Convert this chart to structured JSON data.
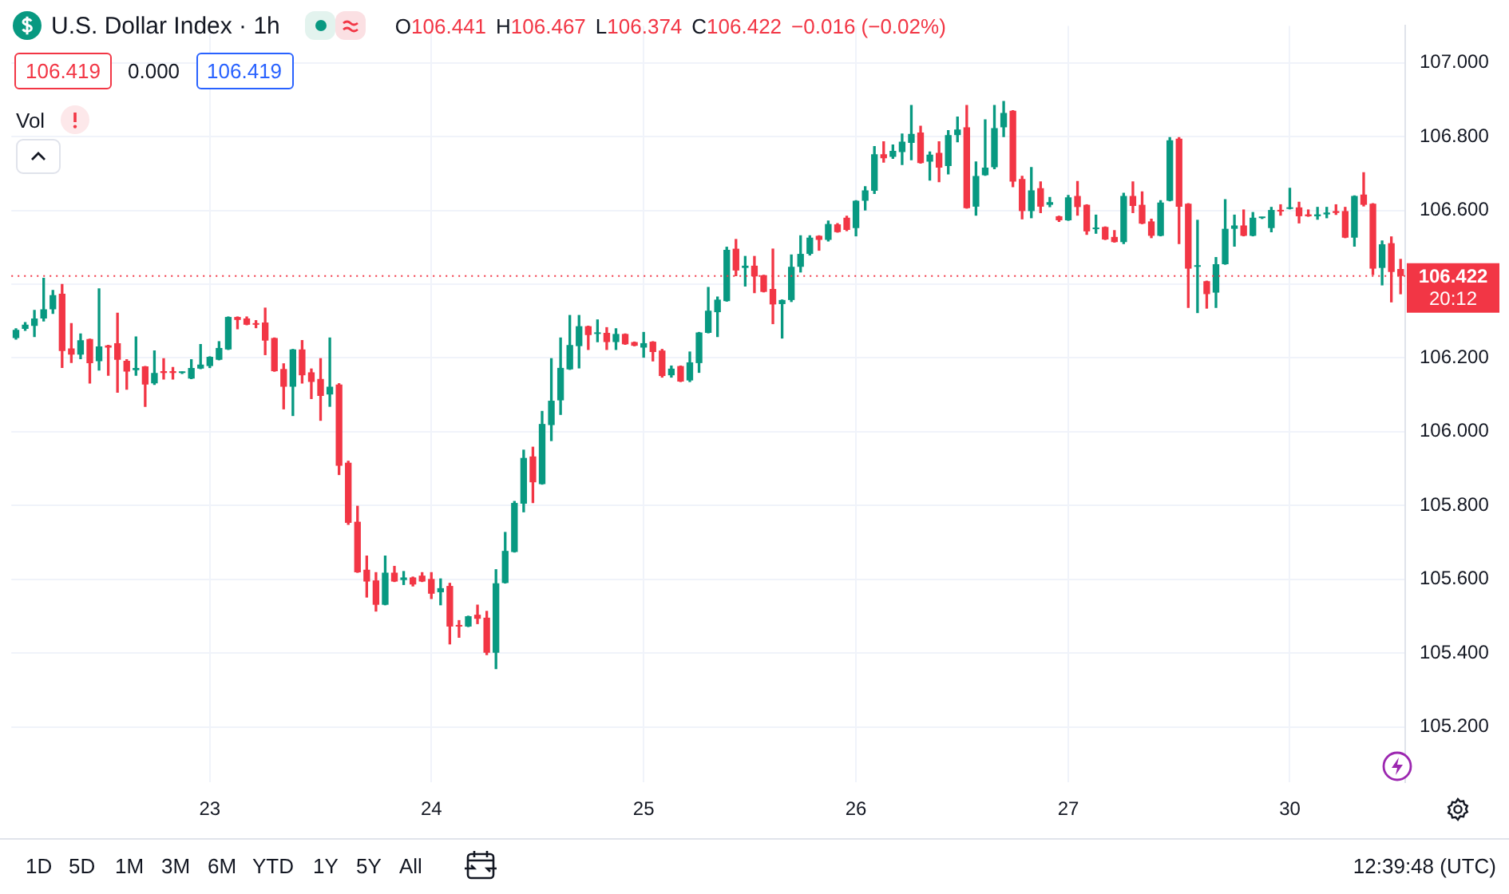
{
  "chart_data": {
    "type": "candlestick",
    "title": "U.S. Dollar Index · 1h",
    "categories": [
      null,
      null,
      null,
      null,
      null,
      null,
      null,
      null,
      null,
      null,
      null,
      null,
      null,
      null,
      null,
      null,
      null,
      null,
      null,
      null,
      null,
      "23",
      null,
      null,
      null,
      null,
      null,
      null,
      null,
      null,
      null,
      null,
      null,
      null,
      null,
      null,
      null,
      null,
      null,
      null,
      null,
      null,
      null,
      null,
      null,
      "24",
      null,
      null,
      null,
      null,
      null,
      null,
      null,
      null,
      null,
      null,
      null,
      null,
      null,
      null,
      null,
      null,
      null,
      null,
      null,
      null,
      null,
      null,
      "25",
      null,
      null,
      null,
      null,
      null,
      null,
      null,
      null,
      null,
      null,
      null,
      null,
      null,
      null,
      null,
      null,
      null,
      null,
      null,
      null,
      null,
      null,
      "26",
      null,
      null,
      null,
      null,
      null,
      null,
      null,
      null,
      null,
      null,
      null,
      null,
      null,
      null,
      null,
      null,
      null,
      null,
      null,
      null,
      null,
      null,
      "27",
      null,
      null,
      null,
      null,
      null,
      null,
      null,
      null,
      null,
      null,
      null,
      null,
      null,
      null,
      null,
      null,
      null,
      null,
      null,
      null,
      null,
      null,
      null,
      "30",
      null,
      null,
      null,
      null,
      null,
      null,
      null,
      null,
      null,
      null,
      null,
      null
    ],
    "ohlc": [
      [
        106.254,
        106.279,
        106.251,
        106.276
      ],
      [
        106.279,
        106.296,
        106.275,
        106.29
      ],
      [
        106.287,
        106.329,
        106.258,
        106.307
      ],
      [
        106.307,
        106.416,
        106.3,
        106.332
      ],
      [
        106.332,
        106.383,
        106.321,
        106.37
      ],
      [
        106.374,
        106.399,
        106.174,
        106.219
      ],
      [
        106.226,
        106.293,
        106.188,
        106.209
      ],
      [
        106.209,
        106.265,
        106.198,
        106.248
      ],
      [
        106.251,
        106.251,
        106.132,
        106.186
      ],
      [
        106.191,
        106.387,
        106.167,
        106.231
      ],
      [
        106.234,
        106.234,
        106.153,
        106.228
      ],
      [
        106.24,
        106.321,
        106.107,
        106.195
      ],
      [
        106.192,
        106.195,
        106.115,
        106.163
      ],
      [
        106.167,
        106.257,
        106.153,
        106.173
      ],
      [
        106.177,
        106.177,
        106.069,
        106.128
      ],
      [
        106.131,
        106.219,
        106.128,
        106.159
      ],
      [
        106.164,
        106.198,
        106.143,
        106.159
      ],
      [
        106.164,
        106.174,
        106.143,
        106.159
      ],
      [
        106.159,
        106.162,
        106.158,
        106.161
      ],
      [
        106.144,
        106.195,
        106.144,
        106.173
      ],
      [
        106.171,
        106.236,
        106.171,
        106.182
      ],
      [
        106.178,
        106.203,
        106.174,
        106.203
      ],
      [
        106.195,
        106.244,
        106.195,
        106.227
      ],
      [
        106.223,
        106.311,
        106.223,
        106.311
      ],
      [
        106.311,
        106.311,
        106.279,
        106.303
      ],
      [
        106.307,
        106.311,
        106.29,
        106.29
      ],
      [
        106.293,
        106.301,
        106.282,
        106.29
      ],
      [
        106.296,
        106.335,
        106.209,
        106.247
      ],
      [
        106.254,
        106.254,
        106.164,
        106.164
      ],
      [
        106.17,
        106.184,
        106.062,
        106.122
      ],
      [
        106.122,
        106.223,
        106.044,
        106.223
      ],
      [
        106.223,
        106.247,
        106.132,
        106.153
      ],
      [
        106.161,
        106.17,
        106.09,
        106.135
      ],
      [
        106.143,
        106.198,
        106.031,
        106.097
      ],
      [
        106.101,
        106.254,
        106.069,
        106.122
      ],
      [
        106.128,
        106.13,
        105.884,
        105.908
      ],
      [
        105.916,
        105.92,
        105.749,
        105.753
      ],
      [
        105.756,
        105.798,
        105.619,
        105.619
      ],
      [
        105.626,
        105.663,
        105.552,
        105.594
      ],
      [
        105.597,
        105.618,
        105.514,
        105.531
      ],
      [
        105.531,
        105.663,
        105.531,
        105.618
      ],
      [
        105.618,
        105.635,
        105.594,
        105.594
      ],
      [
        105.598,
        105.621,
        105.586,
        105.605
      ],
      [
        105.605,
        105.606,
        105.582,
        105.586
      ],
      [
        105.61,
        105.618,
        105.594,
        105.594
      ],
      [
        105.601,
        105.618,
        105.548,
        105.561
      ],
      [
        105.565,
        105.601,
        105.531,
        105.576
      ],
      [
        105.582,
        105.589,
        105.425,
        105.472
      ],
      [
        105.475,
        105.488,
        105.443,
        105.472
      ],
      [
        105.472,
        105.5,
        105.472,
        105.5
      ],
      [
        105.504,
        105.53,
        105.48,
        105.493
      ],
      [
        105.496,
        105.513,
        105.396,
        105.401
      ],
      [
        105.401,
        105.626,
        105.358,
        105.589
      ],
      [
        105.59,
        105.727,
        105.59,
        105.677
      ],
      [
        105.674,
        105.811,
        105.674,
        105.807
      ],
      [
        105.805,
        105.95,
        105.783,
        105.929
      ],
      [
        105.933,
        105.958,
        105.808,
        105.863
      ],
      [
        105.858,
        106.055,
        105.858,
        106.021
      ],
      [
        106.018,
        106.198,
        105.976,
        106.084
      ],
      [
        106.085,
        106.254,
        106.047,
        106.173
      ],
      [
        106.169,
        106.315,
        106.169,
        106.235
      ],
      [
        106.232,
        106.315,
        106.173,
        106.286
      ],
      [
        106.286,
        106.286,
        106.223,
        106.262
      ],
      [
        106.265,
        106.303,
        106.244,
        106.268
      ],
      [
        106.268,
        106.282,
        106.223,
        106.243
      ],
      [
        106.243,
        106.279,
        106.223,
        106.265
      ],
      [
        106.265,
        106.265,
        106.237,
        106.237
      ],
      [
        106.243,
        106.243,
        106.233,
        106.233
      ],
      [
        106.228,
        106.269,
        106.202,
        106.24
      ],
      [
        106.244,
        106.244,
        106.192,
        106.216
      ],
      [
        106.22,
        106.223,
        106.148,
        106.151
      ],
      [
        106.153,
        106.178,
        106.148,
        106.171
      ],
      [
        106.178,
        106.178,
        106.136,
        106.136
      ],
      [
        106.139,
        106.216,
        106.136,
        106.188
      ],
      [
        106.186,
        106.269,
        106.161,
        106.269
      ],
      [
        106.268,
        106.391,
        106.268,
        106.328
      ],
      [
        106.324,
        106.365,
        106.258,
        106.358
      ],
      [
        106.354,
        106.5,
        106.354,
        106.493
      ],
      [
        106.496,
        106.521,
        106.423,
        106.437
      ],
      [
        106.444,
        106.475,
        106.395,
        106.45
      ],
      [
        106.45,
        106.475,
        106.377,
        106.421
      ],
      [
        106.424,
        106.424,
        106.379,
        106.379
      ],
      [
        106.387,
        106.495,
        106.293,
        106.345
      ],
      [
        106.346,
        106.357,
        106.254,
        106.357
      ],
      [
        106.357,
        106.479,
        106.353,
        106.447
      ],
      [
        106.447,
        106.531,
        106.433,
        106.482
      ],
      [
        106.482,
        106.531,
        106.479,
        106.526
      ],
      [
        106.531,
        106.531,
        106.492,
        106.52
      ],
      [
        106.52,
        106.571,
        106.517,
        106.563
      ],
      [
        106.562,
        106.564,
        106.541,
        106.541
      ],
      [
        106.58,
        106.584,
        106.545,
        106.547
      ],
      [
        106.552,
        106.626,
        106.531,
        106.626
      ],
      [
        106.626,
        106.664,
        106.601,
        106.654
      ],
      [
        106.653,
        106.773,
        106.646,
        106.752
      ],
      [
        106.752,
        106.786,
        106.731,
        106.741
      ],
      [
        106.745,
        106.777,
        106.741,
        106.761
      ],
      [
        106.758,
        106.807,
        106.724,
        106.786
      ],
      [
        106.783,
        106.884,
        106.737,
        106.807
      ],
      [
        106.811,
        106.828,
        106.728,
        106.728
      ],
      [
        106.732,
        106.758,
        106.682,
        106.751
      ],
      [
        106.756,
        106.786,
        106.678,
        106.716
      ],
      [
        106.72,
        106.816,
        106.699,
        106.804
      ],
      [
        106.804,
        106.853,
        106.786,
        106.819
      ],
      [
        106.825,
        106.884,
        106.606,
        106.606
      ],
      [
        106.61,
        106.731,
        106.587,
        106.693
      ],
      [
        106.695,
        106.845,
        106.695,
        106.716
      ],
      [
        106.717,
        106.884,
        106.713,
        106.823
      ],
      [
        106.825,
        106.895,
        106.8,
        106.864
      ],
      [
        106.87,
        106.87,
        106.664,
        106.678
      ],
      [
        106.685,
        106.692,
        106.577,
        106.598
      ],
      [
        106.598,
        106.716,
        106.58,
        106.654
      ],
      [
        106.66,
        106.677,
        106.594,
        106.61
      ],
      [
        106.615,
        106.635,
        106.61,
        106.622
      ],
      [
        106.584,
        106.584,
        106.57,
        106.573
      ],
      [
        106.573,
        106.64,
        106.573,
        106.635
      ],
      [
        106.639,
        106.678,
        106.587,
        106.609
      ],
      [
        106.615,
        106.615,
        106.535,
        106.543
      ],
      [
        106.549,
        106.587,
        106.538,
        106.552
      ],
      [
        106.555,
        106.555,
        106.521,
        106.521
      ],
      [
        106.528,
        106.545,
        106.514,
        106.514
      ],
      [
        106.514,
        106.646,
        106.51,
        106.639
      ],
      [
        106.639,
        106.677,
        106.594,
        106.612
      ],
      [
        106.615,
        106.65,
        106.564,
        106.564
      ],
      [
        106.57,
        106.576,
        106.526,
        106.531
      ],
      [
        106.531,
        106.626,
        106.531,
        106.621
      ],
      [
        106.626,
        106.797,
        106.626,
        106.79
      ],
      [
        106.794,
        106.797,
        106.51,
        106.61
      ],
      [
        106.618,
        106.618,
        106.337,
        106.442
      ],
      [
        106.447,
        106.573,
        106.323,
        106.45
      ],
      [
        106.408,
        106.408,
        106.335,
        106.373
      ],
      [
        106.377,
        106.472,
        106.337,
        106.454
      ],
      [
        106.454,
        106.629,
        106.454,
        106.55
      ],
      [
        106.55,
        106.587,
        106.503,
        106.559
      ],
      [
        106.559,
        106.601,
        106.531,
        106.531
      ],
      [
        106.531,
        106.594,
        106.531,
        106.58
      ],
      [
        106.579,
        106.581,
        106.578,
        106.58
      ],
      [
        106.552,
        106.608,
        106.542,
        106.601
      ],
      [
        106.601,
        106.615,
        106.587,
        106.597
      ],
      [
        106.604,
        106.66,
        106.604,
        106.608
      ],
      [
        106.608,
        106.622,
        106.566,
        106.584
      ],
      [
        106.589,
        106.601,
        106.584,
        106.584
      ],
      [
        106.584,
        106.608,
        106.576,
        106.589
      ],
      [
        106.589,
        106.608,
        106.58,
        106.594
      ],
      [
        106.598,
        106.615,
        106.589,
        106.593
      ],
      [
        106.598,
        106.608,
        106.526,
        106.526
      ],
      [
        106.526,
        106.639,
        106.503,
        106.639
      ],
      [
        106.643,
        106.702,
        106.612,
        106.615
      ],
      [
        106.618,
        106.618,
        106.426,
        106.442
      ],
      [
        106.444,
        106.517,
        106.398,
        106.508
      ],
      [
        106.511,
        106.528,
        106.352,
        106.433
      ],
      [
        106.441,
        106.467,
        106.374,
        106.422
      ]
    ],
    "colors": [
      "#089981",
      "#089981",
      "#089981",
      "#089981",
      "#089981",
      "#f23645",
      "#f23645",
      "#089981",
      "#f23645",
      "#089981",
      "#f23645",
      "#f23645",
      "#f23645",
      "#089981",
      "#f23645",
      "#089981",
      "#f23645",
      "#f23645",
      "#089981",
      "#089981",
      "#089981",
      "#089981",
      "#089981",
      "#089981",
      "#f23645",
      "#f23645",
      "#f23645",
      "#f23645",
      "#f23645",
      "#f23645",
      "#089981",
      "#f23645",
      "#f23645",
      "#f23645",
      "#089981",
      "#f23645",
      "#f23645",
      "#f23645",
      "#f23645",
      "#f23645",
      "#089981",
      "#f23645",
      "#089981",
      "#f23645",
      "#f23645",
      "#f23645",
      "#089981",
      "#f23645",
      "#f23645",
      "#089981",
      "#f23645",
      "#f23645",
      "#089981",
      "#089981",
      "#089981",
      "#089981",
      "#f23645",
      "#089981",
      "#089981",
      "#089981",
      "#089981",
      "#089981",
      "#f23645",
      "#089981",
      "#f23645",
      "#089981",
      "#f23645",
      "#f23645",
      "#089981",
      "#f23645",
      "#f23645",
      "#089981",
      "#f23645",
      "#089981",
      "#089981",
      "#089981",
      "#089981",
      "#089981",
      "#f23645",
      "#089981",
      "#f23645",
      "#f23645",
      "#f23645",
      "#089981",
      "#089981",
      "#089981",
      "#089981",
      "#f23645",
      "#089981",
      "#f23645",
      "#f23645",
      "#089981",
      "#089981",
      "#089981",
      "#f23645",
      "#089981",
      "#089981",
      "#089981",
      "#f23645",
      "#089981",
      "#f23645",
      "#089981",
      "#089981",
      "#f23645",
      "#089981",
      "#089981",
      "#089981",
      "#089981",
      "#f23645",
      "#f23645",
      "#089981",
      "#f23645",
      "#089981",
      "#f23645",
      "#089981",
      "#f23645",
      "#f23645",
      "#089981",
      "#f23645",
      "#f23645",
      "#089981",
      "#f23645",
      "#f23645",
      "#f23645",
      "#089981",
      "#089981",
      "#f23645",
      "#f23645",
      "#089981",
      "#f23645",
      "#089981",
      "#089981",
      "#089981",
      "#f23645",
      "#089981",
      "#089981",
      "#089981",
      "#f23645",
      "#089981",
      "#f23645",
      "#f23645",
      "#089981",
      "#089981",
      "#f23645",
      "#f23645",
      "#089981",
      "#f23645",
      "#f23645",
      "#089981",
      "#f23645",
      "#f23645"
    ],
    "ylim": [
      105.05,
      107.1
    ],
    "yticks": [
      {
        "value": 105.2,
        "label": "105.200"
      },
      {
        "value": 105.4,
        "label": "105.400"
      },
      {
        "value": 105.6,
        "label": "105.600"
      },
      {
        "value": 105.8,
        "label": "105.800"
      },
      {
        "value": 106,
        "label": "106.000"
      },
      {
        "value": 106.2,
        "label": "106.200"
      },
      {
        "value": 106.4,
        "label": null
      },
      {
        "value": 106.6,
        "label": "106.600"
      },
      {
        "value": 106.8,
        "label": "106.800"
      },
      {
        "value": 107,
        "label": "107.000"
      }
    ],
    "grid": true,
    "ref_lines": [
      {
        "axis": "y",
        "value": 106.422,
        "label": "106.422",
        "color": "#f23645",
        "line_style": "dotted"
      }
    ],
    "annotations": [
      "O106.441",
      "H106.467",
      "L106.374",
      "C106.422",
      "−0.016 (−0.02%)",
      "106.419",
      "0.000",
      "106.419",
      "Vol",
      "20:12",
      "1D",
      "5D",
      "1M",
      "3M",
      "6M",
      "YTD",
      "1Y",
      "5Y",
      "All",
      "12:39:48 (UTC)"
    ]
  }
}
